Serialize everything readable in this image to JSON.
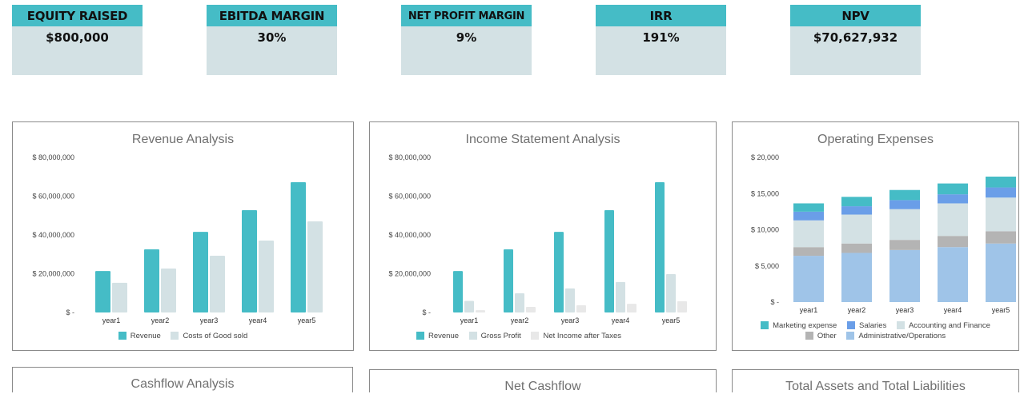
{
  "kpis": [
    {
      "label": "EQUITY RAISED",
      "value": "$800,000"
    },
    {
      "label": "EBITDA MARGIN",
      "value": "30%"
    },
    {
      "label": "NET PROFIT MARGIN",
      "value": "9%"
    },
    {
      "label": "IRR",
      "value": "191%"
    },
    {
      "label": "NPV",
      "value": "$70,627,932"
    }
  ],
  "colors": {
    "teal": "#45bcc6",
    "light": "#d3e1e4",
    "pale": "#e8e8e8",
    "blue": "#6a9ee8",
    "gray": "#b4b4b4",
    "admin": "#9fc4e8"
  },
  "chart_data": [
    {
      "type": "bar",
      "title": "Revenue Analysis",
      "categories": [
        "year1",
        "year2",
        "year3",
        "year4",
        "year5"
      ],
      "ylim": [
        0,
        80000000
      ],
      "yticks": [
        "$ -",
        "$ 20,000,000",
        "$ 40,000,000",
        "$ 60,000,000",
        "$ 80,000,000"
      ],
      "legend": "bottom",
      "series": [
        {
          "name": "Revenue",
          "color": "#45bcc6",
          "values": [
            21400000,
            32600000,
            41600000,
            52800000,
            67200000
          ]
        },
        {
          "name": "Costs of Good sold",
          "color": "#d3e1e4",
          "values": [
            15300000,
            22700000,
            29300000,
            37100000,
            47000000
          ]
        }
      ]
    },
    {
      "type": "bar",
      "title": "Income Statement Analysis",
      "categories": [
        "year1",
        "year2",
        "year3",
        "year4",
        "year5"
      ],
      "ylim": [
        0,
        80000000
      ],
      "yticks": [
        "$ -",
        "$ 20,000,000",
        "$ 40,000,000",
        "$ 60,000,000",
        "$ 80,000,000"
      ],
      "legend": "bottom",
      "series": [
        {
          "name": "Revenue",
          "color": "#45bcc6",
          "values": [
            21400000,
            32600000,
            41600000,
            52800000,
            67200000
          ]
        },
        {
          "name": "Gross Profit",
          "color": "#d3e1e4",
          "values": [
            6000000,
            9900000,
            12400000,
            15700000,
            19800000
          ]
        },
        {
          "name": "Net Income after Taxes",
          "color": "#e8e8e8",
          "values": [
            1200000,
            2900000,
            3700000,
            4500000,
            5800000
          ]
        }
      ]
    },
    {
      "type": "bar",
      "stacked": true,
      "title": "Operating Expenses",
      "categories": [
        "year1",
        "year2",
        "year3",
        "year4",
        "year5"
      ],
      "ylim": [
        0,
        20000
      ],
      "yticks": [
        "$ -",
        "$ 5,000",
        "$ 10,000",
        "$ 15,000",
        "$ 20,000"
      ],
      "legend": "bottom",
      "series": [
        {
          "name": "Administrative/Operations",
          "color": "#9fc4e8",
          "values": [
            6400,
            6800,
            7200,
            7600,
            8100
          ]
        },
        {
          "name": "Other",
          "color": "#b4b4b4",
          "values": [
            1200,
            1300,
            1400,
            1550,
            1700
          ]
        },
        {
          "name": "Accounting and Finance",
          "color": "#d3e1e4",
          "values": [
            3700,
            4000,
            4250,
            4500,
            4650
          ]
        },
        {
          "name": "Salaries",
          "color": "#6a9ee8",
          "values": [
            1200,
            1150,
            1250,
            1250,
            1400
          ]
        },
        {
          "name": "Marketing expense",
          "color": "#45bcc6",
          "values": [
            1150,
            1300,
            1400,
            1500,
            1500
          ]
        }
      ]
    }
  ],
  "bottom_panels": [
    "Cashflow Analysis",
    "Net Cashflow",
    "Total Assets and Total Liabilities"
  ]
}
